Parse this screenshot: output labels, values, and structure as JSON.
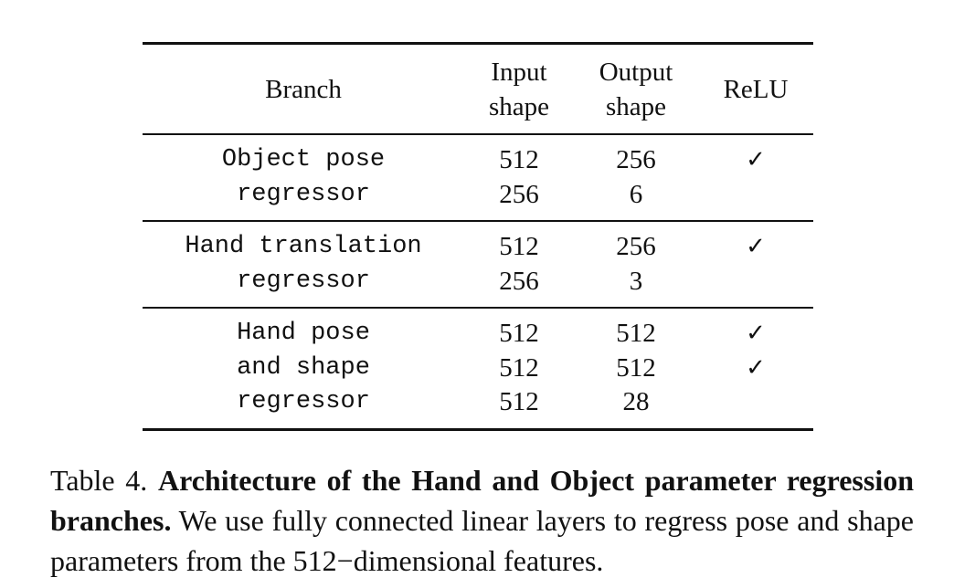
{
  "table": {
    "headers": {
      "branch": "Branch",
      "input": [
        "Input",
        "shape"
      ],
      "output": [
        "Output",
        "shape"
      ],
      "relu": "ReLU"
    },
    "groups": [
      {
        "branch": [
          "Object pose",
          "regressor"
        ],
        "input": [
          "512",
          "256"
        ],
        "output": [
          "256",
          "6"
        ],
        "relu": [
          "✓",
          ""
        ]
      },
      {
        "branch": [
          "Hand translation",
          "regressor"
        ],
        "input": [
          "512",
          "256"
        ],
        "output": [
          "256",
          "3"
        ],
        "relu": [
          "✓",
          ""
        ]
      },
      {
        "branch": [
          "Hand pose",
          "and shape",
          "regressor"
        ],
        "input": [
          "512",
          "512",
          "512"
        ],
        "output": [
          "512",
          "512",
          "28"
        ],
        "relu": [
          "✓",
          "✓",
          ""
        ]
      }
    ]
  },
  "caption": {
    "label": "Table 4.",
    "title": "Architecture of the Hand and Object parameter regression branches.",
    "body_pre": "We use fully connected linear layers to regress pose and shape parameters from the",
    "math": "512−",
    "body_post": "dimensional features."
  }
}
